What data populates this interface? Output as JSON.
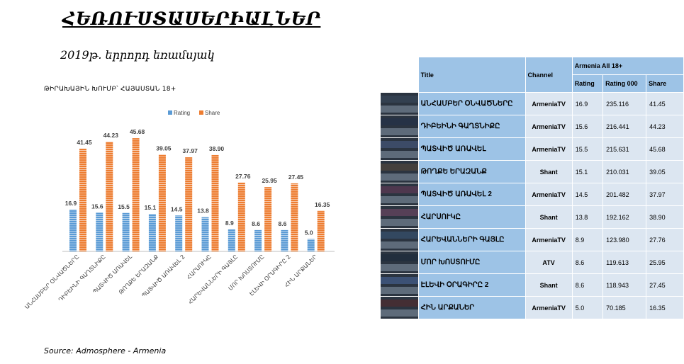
{
  "header": {
    "title": "ՀԵՌՈՒՍՏԱՍԵՐԻԱԼՆԵՐ",
    "subtitle": "2019թ. երրորդ եռամսյակ",
    "chart_caption": "ԹԻՐԱԽԱՅԻՆ ԽՈՒՄԲ՝ ՀԱՅԱՍՏԱՆ 18+",
    "source": "Source: Admosphere - Armenia"
  },
  "colors": {
    "rating": "#5b9bd5",
    "share": "#ed7d31",
    "header_fill": "#9dc3e6",
    "row_fill": "#dce6f1"
  },
  "chart_data": {
    "type": "bar",
    "title": "ԹԻՐԱԽԱՅԻՆ ԽՈՒՄԲ՝ ՀԱՅԱՍՏԱՆ 18+",
    "legend_position": "top",
    "grid": false,
    "categories": [
      "ԱՆՀԱՄԲԵՐ ՕՆՎԱԾՆԵՐԸ",
      "ԴԻԲԵԻՆԻ ԳԱՂՏՆԻՔԸ",
      "ՊԱՏՎԻԾ ԱՌԱՎԵԼ",
      "ԹՈՂՔԵ ԵՐԱԶԱՆՔ",
      "ՊԱՏՎԻԾ ԱՌԱՎԵԼ 2",
      "ՀԱՐՍՈՒԿԸ",
      "ՀԱՐԵՎԱՆՆԵՐԻ ԳԱՅԼԸ",
      "ՄՈՐ ԽՈՍՏՈՒՄԸ",
      "ԷԼԵՎԻ ՕՐԱԳԻՐԸ 2",
      "ՀԻՆ ԱՐՔԱՆԵՐ"
    ],
    "series": [
      {
        "name": "Rating",
        "values": [
          16.9,
          15.6,
          15.5,
          15.1,
          14.5,
          13.8,
          8.9,
          8.6,
          8.6,
          5.0
        ],
        "labels": [
          "16.9",
          "15.6",
          "15.5",
          "15.1",
          "14.5",
          "13.8",
          "8.9",
          "8.6",
          "8.6",
          "5.0"
        ]
      },
      {
        "name": "Share",
        "values": [
          41.45,
          44.23,
          45.68,
          39.05,
          37.97,
          38.9,
          27.76,
          25.95,
          27.45,
          16.35
        ],
        "labels": [
          "41.45",
          "44.23",
          "45.68",
          "39.05",
          "37.97",
          "38.90",
          "27.76",
          "25.95",
          "27.45",
          "16.35"
        ]
      }
    ],
    "ylim": [
      0,
      50
    ]
  },
  "table": {
    "columns": {
      "title": "Title",
      "channel": "Channel",
      "group": "Armenia All 18+",
      "rating": "Rating",
      "rating000": "Rating 000",
      "share": "Share"
    },
    "rows": [
      {
        "title": "ԱՆՀԱՄԲԵՐ ՕՆՎԱԾՆԵՐԸ",
        "channel": "ArmeniaTV",
        "rating": "16.9",
        "rating000": "235.116",
        "share": "41.45"
      },
      {
        "title": "ԴԻԲԵԻՆԻ ԳԱՂՏՆԻՔԸ",
        "channel": "ArmeniaTV",
        "rating": "15.6",
        "rating000": "216.441",
        "share": "44.23"
      },
      {
        "title": "ՊԱՏՎԻԾ ԱՌԱՎԵԼ",
        "channel": "ArmeniaTV",
        "rating": "15.5",
        "rating000": "215.631",
        "share": "45.68"
      },
      {
        "title": "ԹՈՂՔԵ ԵՐԱԶԱՆՔ",
        "channel": "Shant",
        "rating": "15.1",
        "rating000": "210.031",
        "share": "39.05"
      },
      {
        "title": "ՊԱՏՎԻԾ ԱՌԱՎԵԼ 2",
        "channel": "ArmeniaTV",
        "rating": "14.5",
        "rating000": "201.482",
        "share": "37.97"
      },
      {
        "title": "ՀԱՐՍՈՒԿԸ",
        "channel": "Shant",
        "rating": "13.8",
        "rating000": "192.162",
        "share": "38.90"
      },
      {
        "title": "ՀԱՐԵՎԱՆՆԵՐԻ ԳԱՅԼԸ",
        "channel": "ArmeniaTV",
        "rating": "8.9",
        "rating000": "123.980",
        "share": "27.76"
      },
      {
        "title": "ՄՈՐ ԽՈՍՏՈՒՄԸ",
        "channel": "ATV",
        "rating": "8.6",
        "rating000": "119.613",
        "share": "25.95"
      },
      {
        "title": "ԷԼԵՎԻ ՕՐԱԳԻՐԸ 2",
        "channel": "Shant",
        "rating": "8.6",
        "rating000": "118.943",
        "share": "27.45"
      },
      {
        "title": "ՀԻՆ ԱՐՔԱՆԵՐ",
        "channel": "ArmeniaTV",
        "rating": "5.0",
        "rating000": "70.185",
        "share": "16.35"
      }
    ]
  }
}
